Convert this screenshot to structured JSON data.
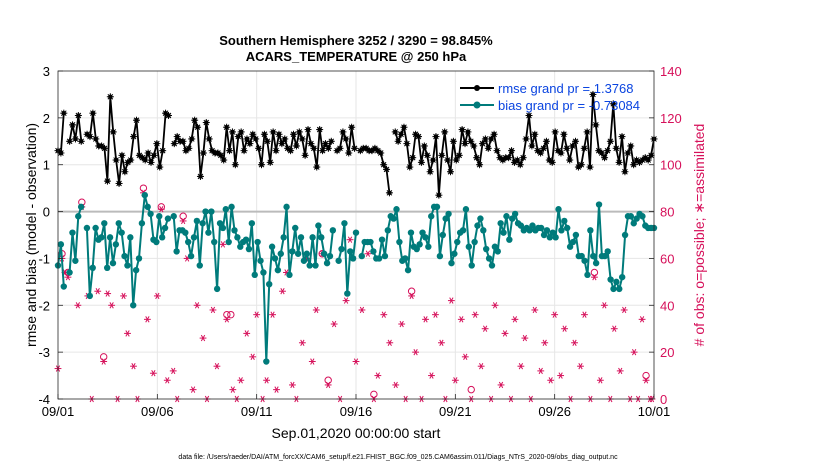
{
  "chart_data": {
    "type": "line",
    "title": "Southern Hemisphere 3252 / 3290 = 98.845%",
    "subtitle": "ACARS_TEMPERATURE @ 250 hPa",
    "xlabel": "Sep.01,2020 00:00:00 start",
    "ylabel_left": "rmse and bias (model - observation)",
    "ylabel_right": "# of obs: o=possible; ∗=assimilated",
    "footer": "data file: /Users/raeder/DAI/ATM_forcXX/CAM6_setup/f.e21.FHIST_BGC.f09_025.CAM6assim.011/Diags_NTrS_2020-09/obs_diag_output.nc",
    "x_ticks": [
      {
        "x": 0,
        "label": "09/01"
      },
      {
        "x": 5,
        "label": "09/06"
      },
      {
        "x": 10,
        "label": "09/11"
      },
      {
        "x": 15,
        "label": "09/16"
      },
      {
        "x": 20,
        "label": "09/21"
      },
      {
        "x": 25,
        "label": "09/26"
      },
      {
        "x": 30,
        "label": "10/01"
      }
    ],
    "xlim": [
      0,
      30
    ],
    "ylim_left": [
      -4,
      3
    ],
    "ylim_right": [
      0,
      140
    ],
    "y_ticks_left": [
      "-4",
      "-3",
      "-2",
      "-1",
      "0",
      "1",
      "2",
      "3"
    ],
    "y_ticks_right": [
      "0",
      "20",
      "40",
      "60",
      "80",
      "100",
      "120",
      "140"
    ],
    "legend": [
      {
        "label": "rmse grand pr = 1.3768",
        "color": "#000000"
      },
      {
        "label": "bias grand pr = -0.73084",
        "color": "#008080"
      }
    ],
    "colors": {
      "rmse": "#000000",
      "bias": "#007b7b",
      "obs": "#d6105a",
      "zero": "#bbbbbb",
      "grid": "#e6e6e6"
    },
    "series": [
      {
        "name": "rmse",
        "values": [
          1.3,
          1.25,
          2.1,
          null,
          1.5,
          1.85,
          1.55,
          2.05,
          1.5,
          null,
          1.65,
          1.6,
          2.1,
          1.55,
          1.4,
          1.4,
          1.35,
          0.65,
          2.45,
          1.7,
          1.1,
          0.6,
          1.2,
          0.85,
          1.05,
          1.1,
          1.6,
          1.95,
          1.2,
          1.15,
          1.1,
          1.25,
          1.05,
          1.2,
          1.45,
          0.95,
          1.3,
          2.1,
          2.05,
          null,
          1.45,
          1.6,
          1.5,
          1.5,
          1.3,
          1.35,
          1.55,
          1.95,
          1.8,
          0.75,
          1.25,
          1.9,
          1.55,
          1.3,
          1.25,
          1.25,
          1.2,
          1.1,
          1.8,
          1.3,
          1.7,
          1.0,
          1.6,
          1.7,
          1.3,
          1.55,
          1.45,
          1.65,
          1.55,
          1.35,
          1.0,
          1.65,
          1.5,
          1.05,
          1.7,
          1.3,
          1.65,
          1.45,
          1.55,
          1.35,
          1.3,
          1.65,
          1.4,
          1.7,
          1.55,
          1.2,
          1.75,
          1.45,
          1.35,
          0.95,
          1.75,
          1.3,
          1.45,
          1.35,
          1.5,
          null,
          1.3,
          1.35,
          1.7,
          1.55,
          1.25,
          1.8,
          1.35,
          null,
          1.3,
          1.35,
          1.35,
          1.3,
          1.3,
          1.35,
          1.3,
          1.25,
          1.0,
          0.9,
          0.4,
          null,
          1.7,
          1.5,
          1.65,
          1.8,
          1.45,
          0.95,
          1.15,
          1.65,
          1.6,
          1.05,
          1.4,
          1.2,
          0.85,
          1.1,
          1.6,
          0.35,
          1.2,
          1.7,
          1.1,
          0.85,
          1.5,
          1.1,
          1.2,
          1.75,
          1.45,
          1.7,
          1.5,
          1.4,
          1.15,
          1.0,
          1.45,
          1.55,
          1.35,
          1.55,
          1.65,
          1.3,
          1.15,
          1.1,
          1.15,
          1.15,
          1.3,
          1.05,
          1.1,
          1.0,
          1.15,
          1.55,
          2.05,
          1.4,
          1.65,
          1.3,
          1.25,
          1.35,
          1.5,
          1.1,
          1.05,
          1.7,
          1.3,
          1.25,
          1.65,
          1.35,
          1.1,
          1.4,
          1.5,
          0.95,
          1.0,
          1.35,
          1.7,
          0.95,
          2.5,
          1.85,
          1.3,
          1.25,
          1.15,
          1.3,
          1.5,
          2.3,
          1.35,
          1.05,
          1.6,
          0.85,
          1.25,
          1.4,
          1.0,
          1.1,
          1.05,
          1.1,
          1.15,
          1.1,
          1.2,
          1.55
        ]
      },
      {
        "name": "bias",
        "values": [
          -1.15,
          -0.7,
          -1.6,
          null,
          -1.3,
          -0.45,
          -1.05,
          -0.1,
          0.1,
          null,
          -0.35,
          -1.8,
          -1.2,
          -0.35,
          -0.6,
          -0.55,
          -0.25,
          -1.2,
          -0.55,
          -1.1,
          -0.7,
          -0.25,
          -0.45,
          -0.95,
          -1.15,
          -0.55,
          -2.0,
          -1.25,
          -1.0,
          -0.25,
          0.35,
          0.1,
          -0.05,
          -0.6,
          -0.65,
          -0.1,
          -0.55,
          -0.35,
          -0.15,
          null,
          -0.1,
          -0.85,
          -0.4,
          -0.4,
          -0.45,
          -0.65,
          -0.95,
          -0.55,
          -0.2,
          -1.15,
          -0.25,
          0.0,
          -0.45,
          0.0,
          -0.65,
          -1.65,
          -0.25,
          -0.35,
          0.05,
          -0.65,
          0.1,
          -0.4,
          -0.55,
          -0.75,
          -0.65,
          -0.6,
          -0.8,
          -0.25,
          -1.35,
          -0.65,
          -1.05,
          -1.3,
          -3.2,
          -1.55,
          -0.75,
          -1.0,
          -1.25,
          -0.9,
          -0.55,
          0.1,
          -1.35,
          -0.85,
          -0.35,
          -0.9,
          -0.55,
          -1.05,
          -0.9,
          -1.15,
          -0.55,
          -1.15,
          -0.3,
          -0.55,
          -0.9,
          -1.1,
          -0.95,
          -0.4,
          null,
          -1.05,
          -0.8,
          -0.25,
          -1.75,
          -0.85,
          -1.0,
          -0.45,
          null,
          -0.95,
          -0.65,
          -0.65,
          -0.65,
          -0.85,
          -1.0,
          -1.0,
          -0.6,
          -0.95,
          -0.4,
          -0.1,
          -0.15,
          0.05,
          -0.65,
          -1.05,
          -1.0,
          -1.25,
          -0.45,
          -0.75,
          -0.8,
          -0.7,
          -0.45,
          -0.55,
          -0.75,
          -0.1,
          0.1,
          0.1,
          -0.95,
          -0.5,
          -0.15,
          -0.05,
          -1.1,
          -0.9,
          -0.65,
          -0.45,
          -0.4,
          0.05,
          -0.75,
          -1.15,
          -0.65,
          -0.3,
          -0.15,
          -0.4,
          -0.8,
          -1.0,
          -1.15,
          -0.75,
          -0.85,
          -0.25,
          -0.45,
          -0.1,
          -0.6,
          -0.15,
          -0.05,
          -0.25,
          -0.3,
          -0.4,
          -0.35,
          -0.4,
          -0.3,
          -0.4,
          -0.35,
          -0.35,
          -0.5,
          -0.4,
          -0.55,
          -0.45,
          -0.55,
          0.05,
          -0.4,
          -0.2,
          -0.35,
          -0.75,
          -0.65,
          -0.5,
          -0.95,
          -0.95,
          -1.05,
          -1.35,
          -0.4,
          -0.95,
          -1.1,
          0.15,
          -0.95,
          -0.95,
          -0.85,
          -1.45,
          -1.65,
          -1.5,
          -1.65,
          -1.4,
          -0.5,
          -0.1,
          -0.1,
          -0.25,
          -0.15,
          -0.05,
          -0.1,
          -0.3,
          -0.35,
          -0.35,
          -0.35
        ]
      }
    ],
    "obs_assimilated": [
      [
        0.0,
        13
      ],
      [
        0.2,
        60
      ],
      [
        0.35,
        54
      ],
      [
        0.5,
        52
      ],
      [
        1.0,
        40
      ],
      [
        1.2,
        82
      ],
      [
        1.5,
        44
      ],
      [
        1.7,
        0
      ],
      [
        2.0,
        46
      ],
      [
        2.3,
        16
      ],
      [
        2.5,
        45
      ],
      [
        2.7,
        40
      ],
      [
        3.0,
        0
      ],
      [
        3.3,
        44
      ],
      [
        3.5,
        28
      ],
      [
        3.8,
        14
      ],
      [
        4.0,
        0
      ],
      [
        4.3,
        88
      ],
      [
        4.5,
        34
      ],
      [
        4.8,
        11
      ],
      [
        5.0,
        44
      ],
      [
        5.2,
        81
      ],
      [
        5.5,
        8
      ],
      [
        5.8,
        12
      ],
      [
        6.0,
        0
      ],
      [
        6.3,
        76
      ],
      [
        6.5,
        60
      ],
      [
        6.8,
        4
      ],
      [
        7.0,
        40
      ],
      [
        7.3,
        26
      ],
      [
        7.5,
        0
      ],
      [
        7.8,
        38
      ],
      [
        8.0,
        14
      ],
      [
        8.3,
        66
      ],
      [
        8.5,
        34
      ],
      [
        8.8,
        4
      ],
      [
        9.0,
        0
      ],
      [
        9.2,
        8
      ],
      [
        9.5,
        28
      ],
      [
        9.8,
        18
      ],
      [
        10.0,
        36
      ],
      [
        10.3,
        0
      ],
      [
        10.5,
        8
      ],
      [
        10.8,
        36
      ],
      [
        11.0,
        4
      ],
      [
        11.3,
        46
      ],
      [
        11.5,
        54
      ],
      [
        11.8,
        6
      ],
      [
        12.0,
        0
      ],
      [
        12.3,
        24
      ],
      [
        12.5,
        60
      ],
      [
        12.8,
        16
      ],
      [
        13.0,
        38
      ],
      [
        13.3,
        62
      ],
      [
        13.6,
        6
      ],
      [
        13.9,
        32
      ],
      [
        14.2,
        0
      ],
      [
        14.5,
        42
      ],
      [
        14.7,
        68
      ],
      [
        15.0,
        16
      ],
      [
        15.3,
        38
      ],
      [
        15.6,
        62
      ],
      [
        15.9,
        0
      ],
      [
        16.1,
        10
      ],
      [
        16.4,
        36
      ],
      [
        16.7,
        24
      ],
      [
        17.0,
        6
      ],
      [
        17.3,
        32
      ],
      [
        17.5,
        0
      ],
      [
        17.8,
        44
      ],
      [
        18.0,
        20
      ],
      [
        18.3,
        0
      ],
      [
        18.5,
        34
      ],
      [
        18.8,
        10
      ],
      [
        19.0,
        36
      ],
      [
        19.3,
        24
      ],
      [
        19.5,
        0
      ],
      [
        19.8,
        42
      ],
      [
        20.0,
        8
      ],
      [
        20.3,
        34
      ],
      [
        20.5,
        18
      ],
      [
        20.8,
        0
      ],
      [
        21.0,
        36
      ],
      [
        21.3,
        14
      ],
      [
        21.5,
        30
      ],
      [
        21.8,
        0
      ],
      [
        22.0,
        40
      ],
      [
        22.3,
        6
      ],
      [
        22.5,
        28
      ],
      [
        22.8,
        0
      ],
      [
        23.0,
        34
      ],
      [
        23.3,
        14
      ],
      [
        23.5,
        26
      ],
      [
        23.8,
        0
      ],
      [
        24.0,
        38
      ],
      [
        24.3,
        12
      ],
      [
        24.5,
        24
      ],
      [
        24.8,
        8
      ],
      [
        25.0,
        36
      ],
      [
        25.3,
        10
      ],
      [
        25.5,
        30
      ],
      [
        25.8,
        0
      ],
      [
        26.0,
        24
      ],
      [
        26.3,
        14
      ],
      [
        26.5,
        36
      ],
      [
        26.8,
        0
      ],
      [
        27.0,
        52
      ],
      [
        27.3,
        8
      ],
      [
        27.5,
        40
      ],
      [
        27.8,
        0
      ],
      [
        28.0,
        30
      ],
      [
        28.3,
        12
      ],
      [
        28.5,
        38
      ],
      [
        28.8,
        0
      ],
      [
        29.0,
        20
      ],
      [
        29.2,
        0
      ],
      [
        29.4,
        34
      ],
      [
        29.6,
        8
      ],
      [
        29.8,
        0
      ],
      [
        29.9,
        0
      ]
    ],
    "obs_possible": [
      [
        0.2,
        62
      ],
      [
        0.5,
        54
      ],
      [
        1.2,
        84
      ],
      [
        2.3,
        18
      ],
      [
        4.3,
        90
      ],
      [
        5.2,
        82
      ],
      [
        6.3,
        78
      ],
      [
        8.5,
        36
      ],
      [
        8.7,
        36
      ],
      [
        13.3,
        62
      ],
      [
        13.6,
        8
      ],
      [
        15.9,
        2
      ],
      [
        17.8,
        46
      ],
      [
        20.8,
        4
      ],
      [
        27.0,
        54
      ],
      [
        29.6,
        10
      ]
    ]
  }
}
